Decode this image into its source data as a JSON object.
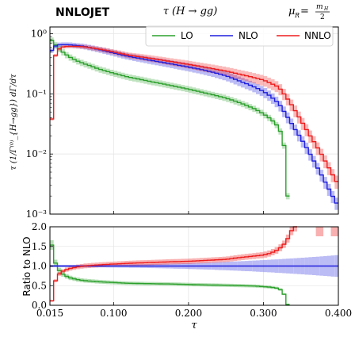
{
  "header": {
    "left": "NNLOJET",
    "center": "τ (H → gg)",
    "right_mu": "μ",
    "right_sub": "R",
    "right_eq": " = ",
    "right_num": "m",
    "right_num_sub": "H",
    "right_den": "2"
  },
  "colors": {
    "lo": "#2ca02c",
    "nlo": "#1f1fdd",
    "nnlo": "#ee1c1c"
  },
  "chart_data": [
    {
      "type": "line",
      "panel": "main",
      "ylabel": "τ (1/Γ⁽⁰⁾_{H→gg}) dΓ/dτ",
      "yscale": "log",
      "ylim": [
        0.001,
        1.3
      ],
      "xlim": [
        0.015,
        0.4
      ],
      "y_tick_labels": [
        "10⁰",
        "10⁻¹",
        "10⁻²",
        "10⁻³"
      ],
      "grid": true,
      "legend": {
        "placement": "top-right",
        "entries": [
          "LO",
          "NLO",
          "NNLO"
        ]
      },
      "series": [
        {
          "name": "LO",
          "x": [
            0.015,
            0.02,
            0.025,
            0.03,
            0.04,
            0.05,
            0.06,
            0.08,
            0.1,
            0.12,
            0.15,
            0.18,
            0.2,
            0.22,
            0.25,
            0.27,
            0.29,
            0.31,
            0.32,
            0.326,
            0.33,
            0.333
          ],
          "y": [
            0.85,
            0.7,
            0.6,
            0.52,
            0.42,
            0.36,
            0.32,
            0.26,
            0.22,
            0.19,
            0.16,
            0.135,
            0.12,
            0.105,
            0.085,
            0.07,
            0.055,
            0.038,
            0.028,
            0.018,
            0.007,
            0.001
          ]
        },
        {
          "name": "NLO",
          "x": [
            0.015,
            0.018,
            0.02,
            0.025,
            0.03,
            0.04,
            0.05,
            0.06,
            0.08,
            0.1,
            0.12,
            0.15,
            0.18,
            0.2,
            0.22,
            0.25,
            0.27,
            0.3,
            0.32,
            0.33,
            0.34,
            0.35,
            0.36,
            0.37,
            0.38,
            0.39,
            0.4
          ],
          "y": [
            0.42,
            0.55,
            0.6,
            0.65,
            0.66,
            0.66,
            0.64,
            0.62,
            0.55,
            0.48,
            0.42,
            0.36,
            0.31,
            0.28,
            0.25,
            0.2,
            0.16,
            0.11,
            0.07,
            0.045,
            0.028,
            0.018,
            0.011,
            0.0065,
            0.0038,
            0.0022,
            0.0013
          ]
        },
        {
          "name": "NNLO",
          "x": [
            0.016,
            0.018,
            0.02,
            0.022,
            0.025,
            0.03,
            0.04,
            0.05,
            0.06,
            0.08,
            0.1,
            0.12,
            0.15,
            0.18,
            0.2,
            0.22,
            0.25,
            0.27,
            0.3,
            0.32,
            0.33,
            0.34,
            0.35,
            0.36,
            0.37,
            0.38,
            0.39,
            0.4
          ],
          "y": [
            0.003,
            0.05,
            0.25,
            0.42,
            0.52,
            0.6,
            0.62,
            0.62,
            0.61,
            0.56,
            0.5,
            0.44,
            0.39,
            0.34,
            0.31,
            0.28,
            0.24,
            0.21,
            0.17,
            0.13,
            0.09,
            0.058,
            0.036,
            0.022,
            0.014,
            0.0085,
            0.005,
            0.003
          ]
        }
      ]
    },
    {
      "type": "line",
      "panel": "ratio",
      "xlabel": "τ",
      "ylabel": "Ratio to NLO",
      "ylim": [
        0.0,
        2.0
      ],
      "xlim": [
        0.015,
        0.4
      ],
      "x_tick_labels": [
        "0.015",
        "0.100",
        "0.200",
        "0.300",
        "0.400"
      ],
      "y_tick_labels": [
        "0.0",
        "0.5",
        "1.0",
        "1.5",
        "2.0"
      ],
      "grid": true,
      "series": [
        {
          "name": "LO",
          "x": [
            0.015,
            0.017,
            0.02,
            0.025,
            0.03,
            0.04,
            0.05,
            0.06,
            0.08,
            0.1,
            0.12,
            0.15,
            0.18,
            0.2,
            0.22,
            0.25,
            0.27,
            0.29,
            0.31,
            0.32,
            0.326,
            0.33,
            0.333
          ],
          "y": [
            1.9,
            1.6,
            1.2,
            0.95,
            0.82,
            0.71,
            0.66,
            0.63,
            0.6,
            0.58,
            0.56,
            0.55,
            0.54,
            0.53,
            0.52,
            0.51,
            0.5,
            0.49,
            0.46,
            0.43,
            0.36,
            0.15,
            0.0
          ]
        },
        {
          "name": "NLO",
          "x": [
            0.015,
            0.4
          ],
          "y": [
            1.0,
            1.0
          ]
        },
        {
          "name": "NNLO",
          "x": [
            0.016,
            0.018,
            0.02,
            0.022,
            0.025,
            0.03,
            0.04,
            0.05,
            0.06,
            0.08,
            0.1,
            0.12,
            0.15,
            0.18,
            0.2,
            0.22,
            0.25,
            0.27,
            0.3,
            0.31,
            0.32,
            0.33,
            0.335,
            0.34
          ],
          "y": [
            0.02,
            0.15,
            0.4,
            0.6,
            0.75,
            0.85,
            0.93,
            0.97,
            1.0,
            1.03,
            1.05,
            1.07,
            1.09,
            1.11,
            1.12,
            1.14,
            1.17,
            1.22,
            1.28,
            1.33,
            1.42,
            1.6,
            1.8,
            2.0
          ]
        }
      ]
    }
  ]
}
